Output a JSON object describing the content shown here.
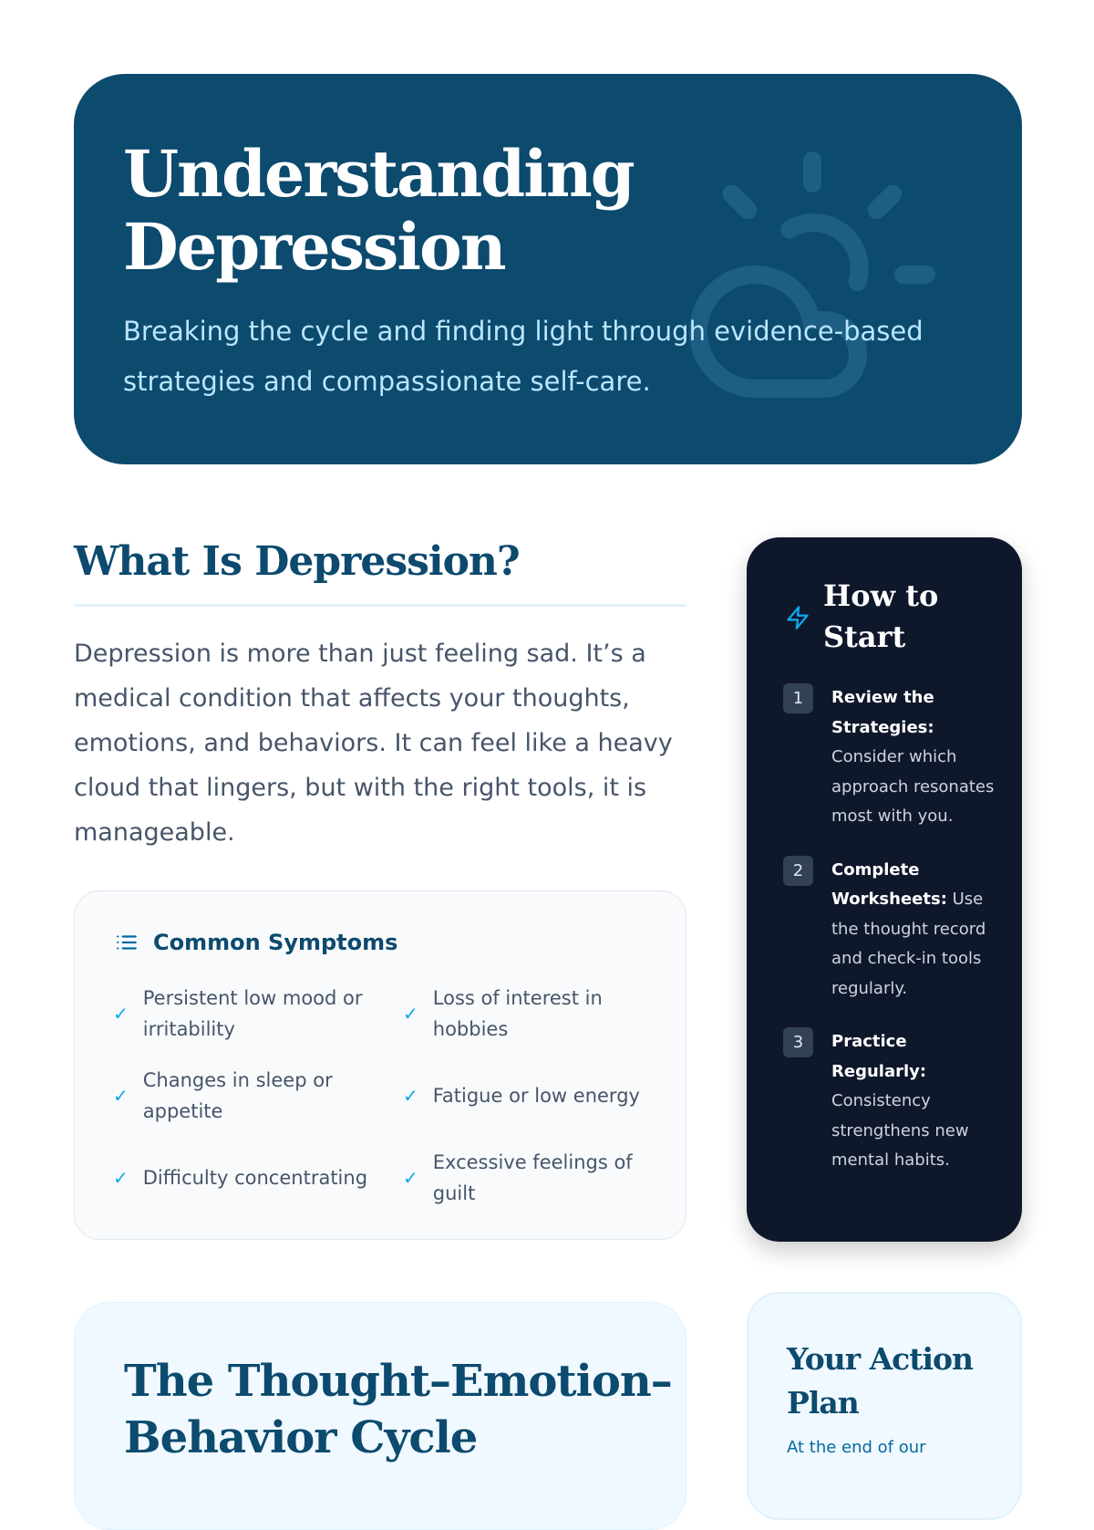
{
  "hero": {
    "title": "Understanding Depression",
    "subtitle": "Breaking the cycle and finding light through evidence-based strategies and compassionate self-care.",
    "icon": "sun-cloud-icon"
  },
  "what": {
    "heading": "What Is Depression?",
    "body": "Depression is more than just feeling sad. It’s a medical condition that affects your thoughts, emotions, and behaviors. It can feel like a heavy cloud that lingers, but with the right tools, it is manageable."
  },
  "symptoms": {
    "title": "Common Symptoms",
    "icon": "list-icon",
    "items": [
      "Persistent low mood or irritability",
      "Loss of interest in hobbies",
      "Changes in sleep or appetite",
      "Fatigue or low energy",
      "Difficulty concentrating",
      "Excessive feelings of guilt"
    ]
  },
  "how_to_start": {
    "title": "How to Start",
    "icon": "lightning-icon",
    "steps": [
      {
        "num": "1",
        "bold": "Review the Strategies:",
        "text": " Consider which approach resonates most with you."
      },
      {
        "num": "2",
        "bold": "Complete Worksheets:",
        "text": " Use the thought record and check-in tools regularly."
      },
      {
        "num": "3",
        "bold": "Practice Regularly:",
        "text": " Consistency strengthens new mental habits."
      }
    ]
  },
  "cycle": {
    "heading": "The Thought–Emotion–Behavior Cycle"
  },
  "action_plan": {
    "heading": "Your Action Plan",
    "body": "At the end of our"
  },
  "colors": {
    "primary": "#0c4a6e",
    "dark": "#0f172a",
    "accent": "#0ea5e9"
  }
}
